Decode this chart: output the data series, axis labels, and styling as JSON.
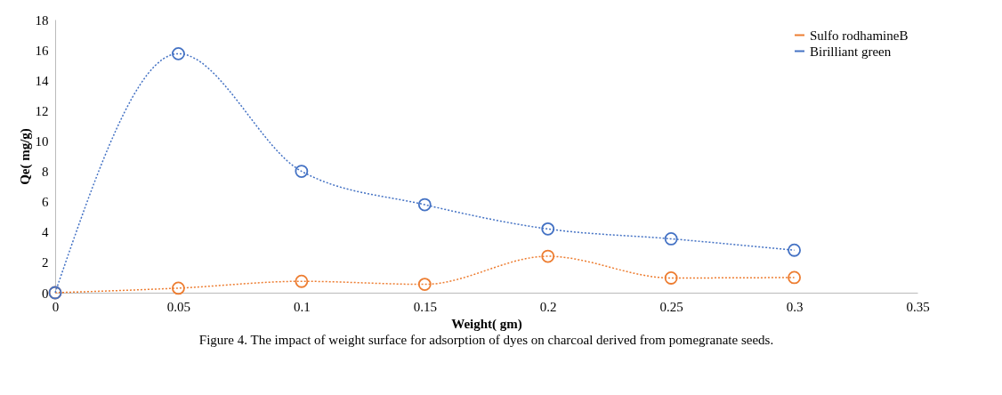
{
  "chart_data": {
    "type": "line",
    "xlabel": "Weight( gm)",
    "ylabel": "Qe( mg/g)",
    "x": [
      0,
      0.05,
      0.1,
      0.15,
      0.2,
      0.25,
      0.3
    ],
    "series": [
      {
        "name": "Sulfo rodhamineB",
        "color": "#ed7d31",
        "values": [
          0,
          0.3,
          0.75,
          0.55,
          2.4,
          0.97,
          1.0
        ]
      },
      {
        "name": "Birilliant green",
        "color": "#4472c4",
        "values": [
          0,
          15.75,
          8.0,
          5.8,
          4.2,
          3.55,
          2.8
        ]
      }
    ],
    "xlim": [
      0,
      0.35
    ],
    "xticks": [
      0,
      0.05,
      0.1,
      0.15,
      0.2,
      0.25,
      0.3,
      0.35
    ],
    "ylim": [
      0,
      18
    ],
    "yticks": [
      0,
      2,
      4,
      6,
      8,
      10,
      12,
      14,
      16,
      18
    ],
    "grid": false,
    "legend": "top right",
    "marker": "circle",
    "line_style": "dotted",
    "annotations": [
      "Figure 4. The impact of weight surface for adsorption of dyes on charcoal derived from pomegranate seeds."
    ]
  }
}
